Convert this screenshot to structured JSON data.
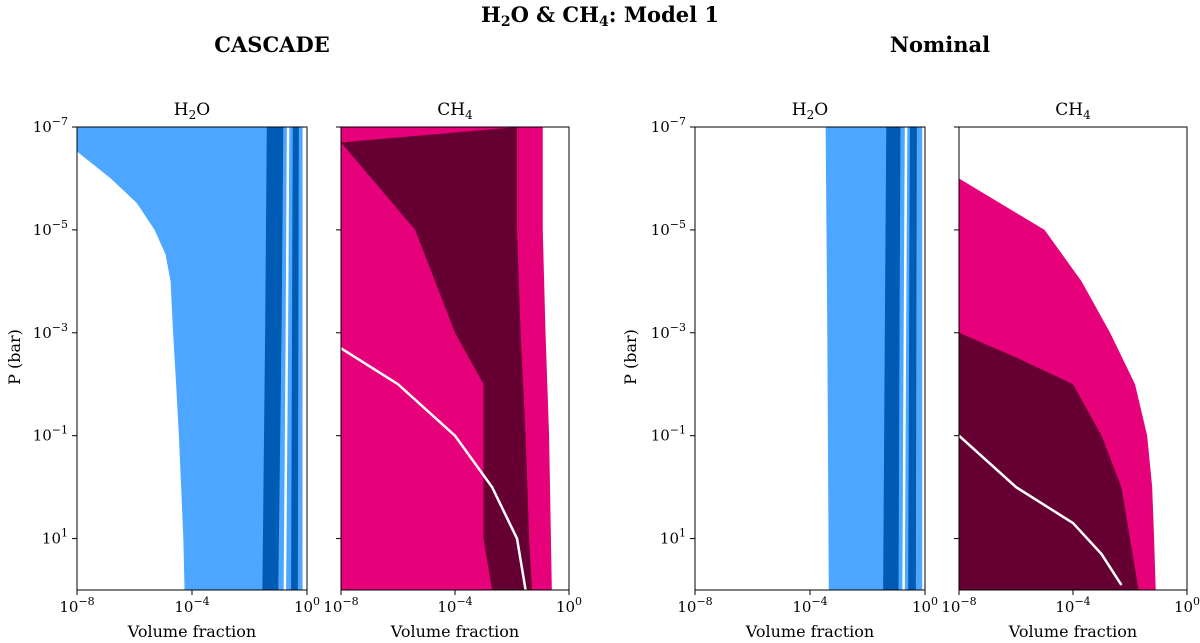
{
  "figure": {
    "title_prefix": "H",
    "title_sub": "2",
    "title_rest": "O & CH",
    "title_sub2": "4",
    "title_suffix": ": Model 1",
    "group_left": "CASCADE",
    "group_right": "Nominal",
    "ylabel": "P (bar)",
    "xlabel": "Volume fraction"
  },
  "colors": {
    "h2o_light": "#4da6ff",
    "h2o_dark": "#005bb5",
    "ch4_light": "#e6007a",
    "ch4_dark": "#660033",
    "median": "#ffffff"
  },
  "chart_data": [
    {
      "type": "area",
      "group": "CASCADE",
      "species": "H2O",
      "title_main": "H",
      "title_sub": "2",
      "title_tail": "O",
      "xscale": "log",
      "yscale": "log",
      "yinverted": true,
      "xlim": [
        1e-08,
        1
      ],
      "ylim": [
        1e-07,
        100
      ],
      "xticks": [
        {
          "label": "10",
          "exp": "−8",
          "v": 1e-08
        },
        {
          "label": "10",
          "exp": "−4",
          "v": 0.0001
        },
        {
          "label": "10",
          "exp": "0",
          "v": 1
        }
      ],
      "yticks": [
        {
          "label": "10",
          "exp": "−7",
          "v": 1e-07
        },
        {
          "label": "10",
          "exp": "−5",
          "v": 1e-05
        },
        {
          "label": "10",
          "exp": "−3",
          "v": 0.001
        },
        {
          "label": "10",
          "exp": "−1",
          "v": 0.1
        },
        {
          "label": "10",
          "exp": "1",
          "v": 10
        }
      ],
      "outer": {
        "left": [
          [
            1e-08,
            1e-07
          ],
          [
            1e-08,
            3e-07
          ],
          [
            1.5e-07,
            1e-06
          ],
          [
            1.2e-06,
            3e-06
          ],
          [
            5e-06,
            1e-05
          ],
          [
            1.2e-05,
            3e-05
          ],
          [
            1.8e-05,
            0.0001
          ],
          [
            2.2e-05,
            0.001
          ],
          [
            2.8e-05,
            0.01
          ],
          [
            3.5e-05,
            0.1
          ],
          [
            4.2e-05,
            1
          ],
          [
            5e-05,
            10
          ],
          [
            5.5e-05,
            100
          ]
        ],
        "right": [
          [
            0.7,
            1e-07
          ],
          [
            0.7,
            100
          ]
        ]
      },
      "inner": {
        "left": [
          [
            0.04,
            1e-07
          ],
          [
            0.035,
            0.001
          ],
          [
            0.028,
            100
          ]
        ],
        "right": [
          [
            0.15,
            1e-07
          ],
          [
            0.13,
            0.001
          ],
          [
            0.1,
            100
          ]
        ]
      },
      "inner2": {
        "left": [
          [
            0.32,
            1e-07
          ],
          [
            0.3,
            0.001
          ],
          [
            0.28,
            100
          ]
        ],
        "right": [
          [
            0.52,
            1e-07
          ],
          [
            0.5,
            0.001
          ],
          [
            0.48,
            100
          ]
        ]
      },
      "median": [
        [
          0.22,
          1e-07
        ],
        [
          0.2,
          0.001
        ],
        [
          0.17,
          100
        ]
      ]
    },
    {
      "type": "area",
      "group": "CASCADE",
      "species": "CH4",
      "title_main": "CH",
      "title_sub": "4",
      "title_tail": "",
      "xscale": "log",
      "yscale": "log",
      "yinverted": true,
      "xlim": [
        1e-08,
        1
      ],
      "ylim": [
        1e-07,
        100
      ],
      "xticks": [
        {
          "label": "10",
          "exp": "−8",
          "v": 1e-08
        },
        {
          "label": "10",
          "exp": "−4",
          "v": 0.0001
        },
        {
          "label": "10",
          "exp": "0",
          "v": 1
        }
      ],
      "yticks": [],
      "outer": {
        "left": [
          [
            1e-08,
            1e-07
          ],
          [
            1e-08,
            100
          ]
        ],
        "right": [
          [
            0.12,
            1e-07
          ],
          [
            0.12,
            1e-05
          ],
          [
            0.15,
            0.001
          ],
          [
            0.2,
            0.1
          ],
          [
            0.25,
            100
          ]
        ]
      },
      "inner": {
        "left": [
          [
            1e-08,
            2e-07
          ],
          [
            4e-06,
            1e-05
          ],
          [
            0.0001,
            0.001
          ],
          [
            0.001,
            0.01
          ],
          [
            0.001,
            10
          ],
          [
            0.002,
            100
          ]
        ],
        "right": [
          [
            0.015,
            1e-07
          ],
          [
            0.015,
            1e-05
          ],
          [
            0.02,
            0.001
          ],
          [
            0.03,
            0.1
          ],
          [
            0.04,
            10
          ],
          [
            0.05,
            100
          ]
        ]
      },
      "inner2": null,
      "median": [
        [
          1e-08,
          0.002
        ],
        [
          1e-06,
          0.01
        ],
        [
          0.0001,
          0.1
        ],
        [
          0.002,
          1
        ],
        [
          0.015,
          10
        ],
        [
          0.03,
          100
        ]
      ],
      "lower_pink": [
        [
          1e-08,
          3
        ],
        [
          1e-06,
          10
        ],
        [
          1e-05,
          50
        ],
        [
          5e-05,
          100
        ]
      ]
    },
    {
      "type": "area",
      "group": "Nominal",
      "species": "H2O",
      "title_main": "H",
      "title_sub": "2",
      "title_tail": "O",
      "xscale": "log",
      "yscale": "log",
      "yinverted": true,
      "xlim": [
        1e-08,
        1
      ],
      "ylim": [
        1e-07,
        100
      ],
      "xticks": [
        {
          "label": "10",
          "exp": "−8",
          "v": 1e-08
        },
        {
          "label": "10",
          "exp": "−4",
          "v": 0.0001
        },
        {
          "label": "10",
          "exp": "0",
          "v": 1
        }
      ],
      "yticks": [
        {
          "label": "10",
          "exp": "−7",
          "v": 1e-07
        },
        {
          "label": "10",
          "exp": "−5",
          "v": 1e-05
        },
        {
          "label": "10",
          "exp": "−3",
          "v": 0.001
        },
        {
          "label": "10",
          "exp": "−1",
          "v": 0.1
        },
        {
          "label": "10",
          "exp": "1",
          "v": 10
        }
      ],
      "outer": {
        "left": [
          [
            0.00035,
            1e-07
          ],
          [
            0.0004,
            0.001
          ],
          [
            0.00045,
            100
          ]
        ],
        "right": [
          [
            0.8,
            1e-07
          ],
          [
            0.8,
            100
          ]
        ]
      },
      "inner": {
        "left": [
          [
            0.045,
            1e-07
          ],
          [
            0.04,
            0.001
          ],
          [
            0.035,
            100
          ]
        ],
        "right": [
          [
            0.14,
            1e-07
          ],
          [
            0.13,
            0.001
          ],
          [
            0.12,
            100
          ]
        ]
      },
      "inner2": {
        "left": [
          [
            0.3,
            1e-07
          ],
          [
            0.28,
            0.001
          ],
          [
            0.26,
            100
          ]
        ],
        "right": [
          [
            0.52,
            1e-07
          ],
          [
            0.5,
            0.001
          ],
          [
            0.48,
            100
          ]
        ]
      },
      "median": [
        [
          0.22,
          1e-07
        ],
        [
          0.2,
          0.001
        ],
        [
          0.18,
          100
        ]
      ]
    },
    {
      "type": "area",
      "group": "Nominal",
      "species": "CH4",
      "title_main": "CH",
      "title_sub": "4",
      "title_tail": "",
      "xscale": "log",
      "yscale": "log",
      "yinverted": true,
      "xlim": [
        1e-08,
        1
      ],
      "ylim": [
        1e-07,
        100
      ],
      "xticks": [
        {
          "label": "10",
          "exp": "−8",
          "v": 1e-08
        },
        {
          "label": "10",
          "exp": "−4",
          "v": 0.0001
        },
        {
          "label": "10",
          "exp": "0",
          "v": 1
        }
      ],
      "yticks": [],
      "outer": {
        "left": [
          [
            1e-08,
            1e-06
          ],
          [
            1e-08,
            100
          ]
        ],
        "right": [
          [
            1e-08,
            1e-06
          ],
          [
            1e-05,
            1e-05
          ],
          [
            0.0002,
            0.0001
          ],
          [
            0.002,
            0.001
          ],
          [
            0.015,
            0.01
          ],
          [
            0.04,
            0.1
          ],
          [
            0.06,
            1
          ],
          [
            0.07,
            10
          ],
          [
            0.08,
            100
          ]
        ]
      },
      "inner": {
        "left": [
          [
            1e-08,
            0.001
          ],
          [
            1e-08,
            100
          ]
        ],
        "right": [
          [
            1e-08,
            0.001
          ],
          [
            1e-06,
            0.003
          ],
          [
            0.0001,
            0.01
          ],
          [
            0.001,
            0.1
          ],
          [
            0.005,
            1
          ],
          [
            0.01,
            10
          ],
          [
            0.02,
            100
          ]
        ]
      },
      "inner2": null,
      "median": [
        [
          1e-08,
          0.1
        ],
        [
          1e-06,
          1
        ],
        [
          0.0001,
          5
        ],
        [
          0.001,
          20
        ],
        [
          0.005,
          80
        ]
      ]
    }
  ]
}
